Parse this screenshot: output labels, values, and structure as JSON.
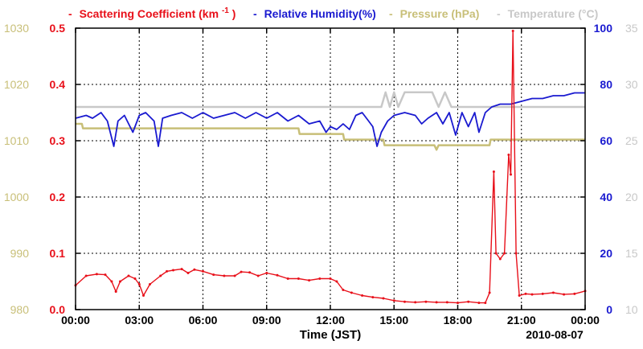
{
  "chart_data": {
    "type": "line",
    "legend": [
      {
        "prefix": "-",
        "label": "Scattering Coefficient (km",
        "sup": "-1",
        "suffix": ")",
        "color": "#e8101a"
      },
      {
        "prefix": "-",
        "label": "Relative Humidity(%)",
        "color": "#1a1ad0"
      },
      {
        "prefix": "-",
        "label": "Pressure (hPa)",
        "color": "#c8bf78"
      },
      {
        "prefix": "-",
        "label": "Temperature (°C)",
        "color": "#c8c8c8"
      }
    ],
    "xlabel": "Time (JST)",
    "date_label": "2010-08-07",
    "x_range": [
      0,
      24
    ],
    "x_ticks": [
      0,
      3,
      6,
      9,
      12,
      15,
      18,
      21,
      24
    ],
    "x_tick_labels": [
      "00:00",
      "03:00",
      "06:00",
      "09:00",
      "12:00",
      "15:00",
      "18:00",
      "21:00",
      "00:00"
    ],
    "axes": {
      "scattering": {
        "side": "left-inner",
        "range": [
          0,
          0.5
        ],
        "ticks": [
          "0.0",
          "0.1",
          "0.2",
          "0.3",
          "0.4",
          "0.5"
        ],
        "color": "#e8101a"
      },
      "pressure": {
        "side": "left-outer",
        "range": [
          980,
          1030
        ],
        "ticks": [
          "980",
          "990",
          "1000",
          "1010",
          "1020",
          "1030"
        ],
        "color": "#c8bf78"
      },
      "humidity": {
        "side": "right-inner",
        "range": [
          0,
          100
        ],
        "ticks": [
          "0",
          "20",
          "40",
          "60",
          "80",
          "100"
        ],
        "color": "#1a1ad0"
      },
      "temperature": {
        "side": "right-outer",
        "range": [
          10,
          35
        ],
        "ticks": [
          "10",
          "15",
          "20",
          "25",
          "30",
          "35"
        ],
        "color": "#c8c8c8"
      }
    },
    "series": [
      {
        "name": "Temperature",
        "axis": "temperature",
        "color": "#c8c8c8",
        "points": [
          [
            0,
            28
          ],
          [
            14.4,
            28
          ],
          [
            14.6,
            29.3
          ],
          [
            14.8,
            28
          ],
          [
            15.0,
            29.3
          ],
          [
            15.2,
            28
          ],
          [
            15.5,
            29.3
          ],
          [
            16.8,
            29.3
          ],
          [
            17.1,
            28
          ],
          [
            17.4,
            29.3
          ],
          [
            17.7,
            28
          ],
          [
            18.3,
            28
          ],
          [
            18.9,
            28
          ],
          [
            24,
            28
          ]
        ]
      },
      {
        "name": "Pressure",
        "axis": "pressure",
        "color": "#c8bf78",
        "points": [
          [
            0,
            1013
          ],
          [
            0.3,
            1013
          ],
          [
            0.35,
            1012.2
          ],
          [
            10.5,
            1012.2
          ],
          [
            10.55,
            1011.2
          ],
          [
            12.6,
            1011.2
          ],
          [
            12.65,
            1010.2
          ],
          [
            14.5,
            1010.2
          ],
          [
            14.55,
            1009.2
          ],
          [
            16.9,
            1009.2
          ],
          [
            17.0,
            1008.4
          ],
          [
            17.1,
            1009.2
          ],
          [
            18.0,
            1009.2
          ],
          [
            19.5,
            1009.2
          ],
          [
            19.55,
            1010.2
          ],
          [
            24,
            1010.2
          ]
        ]
      },
      {
        "name": "Relative Humidity",
        "axis": "humidity",
        "color": "#1a1ad0",
        "points": [
          [
            0,
            68
          ],
          [
            0.5,
            69
          ],
          [
            0.8,
            68
          ],
          [
            1.2,
            70
          ],
          [
            1.5,
            67
          ],
          [
            1.8,
            58
          ],
          [
            2.0,
            67
          ],
          [
            2.3,
            69
          ],
          [
            2.7,
            63
          ],
          [
            3.0,
            69
          ],
          [
            3.3,
            70
          ],
          [
            3.7,
            67
          ],
          [
            3.9,
            58
          ],
          [
            4.1,
            68
          ],
          [
            4.5,
            69
          ],
          [
            5.0,
            70
          ],
          [
            5.5,
            68
          ],
          [
            6.0,
            70
          ],
          [
            6.5,
            68
          ],
          [
            7.0,
            69
          ],
          [
            7.5,
            70
          ],
          [
            8.0,
            68
          ],
          [
            8.5,
            70
          ],
          [
            9.0,
            68
          ],
          [
            9.5,
            70
          ],
          [
            10.0,
            67
          ],
          [
            10.5,
            69
          ],
          [
            11.0,
            66
          ],
          [
            11.5,
            67
          ],
          [
            11.8,
            63
          ],
          [
            12.0,
            65
          ],
          [
            12.3,
            64
          ],
          [
            12.6,
            66
          ],
          [
            12.9,
            64
          ],
          [
            13.2,
            69
          ],
          [
            13.5,
            70
          ],
          [
            13.8,
            67
          ],
          [
            14.0,
            65
          ],
          [
            14.2,
            58
          ],
          [
            14.4,
            63
          ],
          [
            14.7,
            67
          ],
          [
            15.0,
            69
          ],
          [
            15.5,
            70
          ],
          [
            16.0,
            69
          ],
          [
            16.3,
            66
          ],
          [
            16.6,
            68
          ],
          [
            17.0,
            70
          ],
          [
            17.3,
            66
          ],
          [
            17.6,
            70
          ],
          [
            17.9,
            62
          ],
          [
            18.2,
            70
          ],
          [
            18.5,
            65
          ],
          [
            18.8,
            70
          ],
          [
            19.0,
            63
          ],
          [
            19.3,
            70
          ],
          [
            19.6,
            72
          ],
          [
            20.0,
            73
          ],
          [
            20.5,
            73
          ],
          [
            21.0,
            74
          ],
          [
            21.5,
            75
          ],
          [
            22.0,
            75
          ],
          [
            22.5,
            76
          ],
          [
            23.0,
            76
          ],
          [
            23.5,
            77
          ],
          [
            24,
            77
          ]
        ]
      },
      {
        "name": "Scattering Coefficient",
        "axis": "scattering",
        "color": "#e8101a",
        "points": [
          [
            0,
            0.043
          ],
          [
            0.5,
            0.06
          ],
          [
            1.0,
            0.063
          ],
          [
            1.4,
            0.062
          ],
          [
            1.7,
            0.05
          ],
          [
            1.9,
            0.032
          ],
          [
            2.1,
            0.05
          ],
          [
            2.5,
            0.06
          ],
          [
            2.8,
            0.055
          ],
          [
            3.0,
            0.045
          ],
          [
            3.2,
            0.025
          ],
          [
            3.5,
            0.045
          ],
          [
            4.0,
            0.06
          ],
          [
            4.3,
            0.068
          ],
          [
            4.6,
            0.07
          ],
          [
            5.0,
            0.072
          ],
          [
            5.3,
            0.065
          ],
          [
            5.6,
            0.071
          ],
          [
            6.0,
            0.068
          ],
          [
            6.5,
            0.062
          ],
          [
            7.0,
            0.06
          ],
          [
            7.5,
            0.06
          ],
          [
            7.8,
            0.067
          ],
          [
            8.2,
            0.066
          ],
          [
            8.6,
            0.06
          ],
          [
            9.0,
            0.065
          ],
          [
            9.5,
            0.061
          ],
          [
            10.0,
            0.055
          ],
          [
            10.5,
            0.055
          ],
          [
            11.0,
            0.052
          ],
          [
            11.5,
            0.055
          ],
          [
            12.0,
            0.055
          ],
          [
            12.3,
            0.05
          ],
          [
            12.6,
            0.035
          ],
          [
            13.0,
            0.03
          ],
          [
            13.5,
            0.025
          ],
          [
            14.0,
            0.022
          ],
          [
            14.5,
            0.02
          ],
          [
            15.0,
            0.016
          ],
          [
            15.5,
            0.014
          ],
          [
            16.0,
            0.013
          ],
          [
            16.5,
            0.014
          ],
          [
            17.0,
            0.013
          ],
          [
            17.5,
            0.013
          ],
          [
            18.0,
            0.012
          ],
          [
            18.5,
            0.014
          ],
          [
            19.0,
            0.012
          ],
          [
            19.3,
            0.012
          ],
          [
            19.5,
            0.03
          ],
          [
            19.7,
            0.245
          ],
          [
            19.8,
            0.1
          ],
          [
            20.0,
            0.09
          ],
          [
            20.2,
            0.1
          ],
          [
            20.4,
            0.275
          ],
          [
            20.5,
            0.24
          ],
          [
            20.6,
            0.495
          ],
          [
            20.75,
            0.1
          ],
          [
            20.9,
            0.025
          ],
          [
            21.2,
            0.028
          ],
          [
            21.5,
            0.027
          ],
          [
            22.0,
            0.028
          ],
          [
            22.5,
            0.03
          ],
          [
            23.0,
            0.027
          ],
          [
            23.5,
            0.028
          ],
          [
            24,
            0.033
          ]
        ]
      }
    ]
  }
}
